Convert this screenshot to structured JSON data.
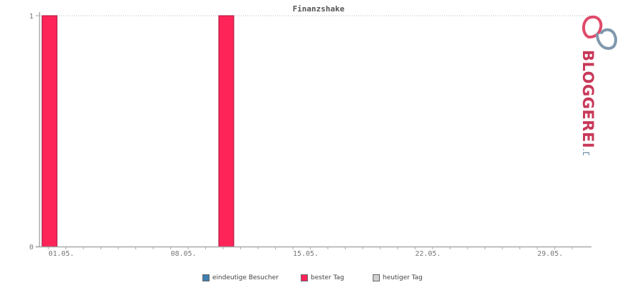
{
  "chart_data": {
    "type": "bar",
    "title": "Finanzshake",
    "days": [
      "01.05.",
      "02.05.",
      "03.05.",
      "04.05.",
      "05.05.",
      "06.05.",
      "07.05.",
      "08.05.",
      "09.05.",
      "10.05.",
      "11.05.",
      "12.05.",
      "13.05.",
      "14.05.",
      "15.05.",
      "16.05.",
      "17.05.",
      "18.05.",
      "19.05.",
      "20.05.",
      "21.05.",
      "22.05.",
      "23.05.",
      "24.05.",
      "25.05.",
      "26.05.",
      "27.05.",
      "28.05.",
      "29.05.",
      "30.05.",
      "31.05."
    ],
    "x_tick_labels": [
      "01.05.",
      "08.05.",
      "15.05.",
      "22.05.",
      "29.05."
    ],
    "y_tick_labels": [
      "0",
      "1"
    ],
    "ylim": [
      0,
      1
    ],
    "series": [
      {
        "name": "eindeutige Besucher",
        "color": "#3f7fb0",
        "values": [
          0,
          0,
          0,
          0,
          0,
          0,
          0,
          0,
          0,
          0,
          0,
          0,
          0,
          0,
          0,
          0,
          0,
          0,
          0,
          0,
          0,
          0,
          0,
          0,
          0,
          0,
          0,
          0,
          0,
          0,
          0
        ]
      },
      {
        "name": "bester Tag",
        "color": "#ff2458",
        "values": [
          1,
          0,
          0,
          0,
          0,
          0,
          0,
          0,
          0,
          0,
          1,
          0,
          0,
          0,
          0,
          0,
          0,
          0,
          0,
          0,
          0,
          0,
          0,
          0,
          0,
          0,
          0,
          0,
          0,
          0,
          0
        ]
      },
      {
        "name": "heutiger Tag",
        "color": "#d0d0d0",
        "values": [
          0,
          0,
          0,
          0,
          0,
          0,
          0,
          0,
          0,
          0,
          0,
          0,
          0,
          0,
          0,
          0,
          0,
          0,
          0,
          0,
          0,
          0,
          0,
          0,
          0,
          0,
          0,
          0,
          0,
          0,
          0
        ]
      }
    ],
    "grid": true,
    "legend_position": "bottom"
  },
  "logo": {
    "text_main": "BLOGGEREI",
    "text_tld": ".DE",
    "color_main": "#c8395a",
    "color_tld": "#6a8aa6"
  }
}
